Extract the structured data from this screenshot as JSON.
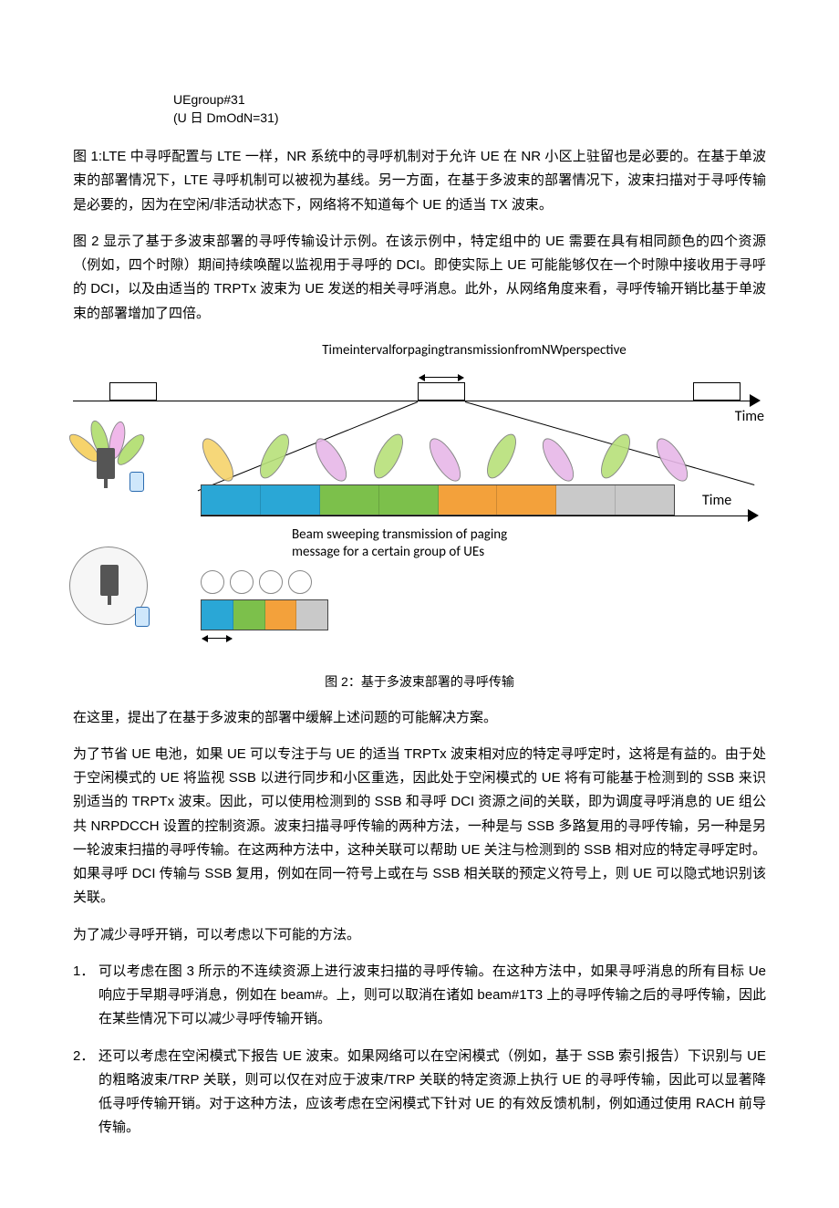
{
  "header": {
    "line1": "UEgroup#31",
    "line2": "(U 日 DmOdN=31)"
  },
  "para1": "图 1:LTE 中寻呼配置与 LTE 一样，NR 系统中的寻呼机制对于允许 UE 在 NR 小区上驻留也是必要的。在基于单波束的部署情况下，LTE 寻呼机制可以被视为基线。另一方面，在基于多波束的部署情况下，波束扫描对于寻呼传输是必要的，因为在空闲/非活动状态下，网络将不知道每个 UE 的适当 TX 波束。",
  "para2": "图 2 显示了基于多波束部署的寻呼传输设计示例。在该示例中，特定组中的 UE 需要在具有相同颜色的四个资源（例如，四个时隙）期间持续唤醒以监视用于寻呼的 DCI。即使实际上 UE 可能能够仅在一个时隙中接收用于寻呼的 DCI，以及由适当的 TRPTx 波束为 UE 发送的相关寻呼消息。此外，从网络角度来看，寻呼传输开销比基于单波束的部署增加了四倍。",
  "figure2": {
    "top_label": "TimeintervalforpagingtransmissionfromNWperspective",
    "time_label": "Time",
    "mid_caption_line1": "Beam sweeping transmission of paging",
    "mid_caption_line2": "message for a certain group of UEs",
    "caption": "图 2：基于多波束部署的寻呼传输",
    "beam_colors": [
      "#f6d36b",
      "#b7e07a",
      "#e7b7e8",
      "#b7e07a",
      "#e7b7e8",
      "#b7e07a",
      "#e7b7e8",
      "#b7e07a",
      "#e7b7e8"
    ],
    "slot_colors_main": [
      "#2aa7d6",
      "#2aa7d6",
      "#7cc04b",
      "#7cc04b",
      "#f3a13b",
      "#f3a13b",
      "#c9c9c9",
      "#c9c9c9"
    ],
    "slot_colors_small": [
      "#2aa7d6",
      "#7cc04b",
      "#f3a13b",
      "#c9c9c9"
    ],
    "petal_colors": [
      "#f6d36b",
      "#b7e07a",
      "#f0b8ea",
      "#b7e07a"
    ]
  },
  "para3": "在这里，提出了在基于多波束的部署中缓解上述问题的可能解决方案。",
  "para4": "为了节省 UE 电池，如果 UE 可以专注于与 UE 的适当 TRPTx 波束相对应的特定寻呼定时，这将是有益的。由于处于空闲模式的 UE 将监视 SSB 以进行同步和小区重选，因此处于空闲模式的 UE 将有可能基于检测到的 SSB 来识别适当的 TRPTx 波束。因此，可以使用检测到的 SSB 和寻呼 DCI 资源之间的关联，即为调度寻呼消息的 UE 组公共 NRPDCCH 设置的控制资源。波束扫描寻呼传输的两种方法，一种是与 SSB 多路复用的寻呼传输，另一种是另一轮波束扫描的寻呼传输。在这两种方法中，这种关联可以帮助 UE 关注与检测到的 SSB 相对应的特定寻呼定时。如果寻呼 DCI 传输与 SSB 复用，例如在同一符号上或在与 SSB 相关联的预定义符号上，则 UE 可以隐式地识别该关联。",
  "para5": "为了减少寻呼开销，可以考虑以下可能的方法。",
  "list": {
    "item1_num": "1．",
    "item1": "可以考虑在图 3 所示的不连续资源上进行波束扫描的寻呼传输。在这种方法中，如果寻呼消息的所有目标 Ue 响应于早期寻呼消息，例如在 beam#。上，则可以取消在诸如 beam#1T3 上的寻呼传输之后的寻呼传输，因此在某些情况下可以减少寻呼传输开销。",
    "item2_num": "2．",
    "item2": "还可以考虑在空闲模式下报告 UE 波束。如果网络可以在空闲模式（例如，基于 SSB 索引报告）下识别与 UE 的粗略波束/TRP 关联，则可以仅在对应于波束/TRP 关联的特定资源上执行 UE 的寻呼传输，因此可以显著降低寻呼传输开销。对于这种方法，应该考虑在空闲模式下针对 UE 的有效反馈机制，例如通过使用 RACH 前导传输。"
  }
}
